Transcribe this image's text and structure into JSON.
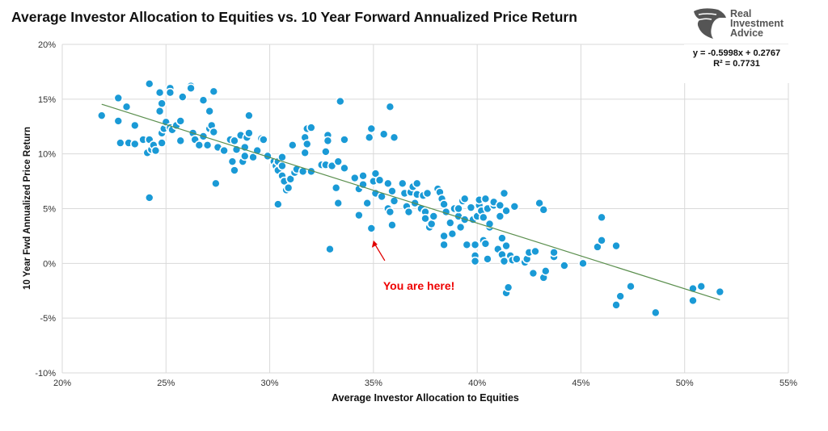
{
  "brand": {
    "logo_line1": "Real",
    "logo_line2": "Investment",
    "logo_line3": "Advice"
  },
  "chart_data": {
    "type": "scatter",
    "title": "Average Investor Allocation to Equities vs. 10 Year Forward Annualized Price Return",
    "xlabel": "Average Investor Allocation to Equities",
    "ylabel": "10 Year Fwd Annualized Price Return",
    "xlim": [
      20,
      55
    ],
    "ylim": [
      -10,
      20
    ],
    "x_ticks": [
      "20%",
      "25%",
      "30%",
      "35%",
      "40%",
      "45%",
      "50%",
      "55%"
    ],
    "y_ticks": [
      "20%",
      "15%",
      "10%",
      "5%",
      "0%",
      "-5%",
      "-10%"
    ],
    "grid": true,
    "point_color": "#1a9ad6",
    "trendline_color": "#5b8f4e",
    "trendline": {
      "slope": -0.5998,
      "intercept": 0.2767,
      "equation": "y = -0.5998x + 0.2767",
      "r2": "R² = 0.7731"
    },
    "annotation": {
      "text": "You are here!",
      "x": 35,
      "y": 3.2,
      "color": "#e00000"
    },
    "points": [
      [
        21.9,
        13.5
      ],
      [
        22.7,
        15.1
      ],
      [
        22.7,
        13.0
      ],
      [
        23.1,
        14.3
      ],
      [
        22.8,
        11.0
      ],
      [
        23.2,
        11.0
      ],
      [
        23.5,
        12.6
      ],
      [
        23.5,
        10.9
      ],
      [
        23.9,
        11.3
      ],
      [
        24.2,
        16.4
      ],
      [
        24.2,
        11.3
      ],
      [
        24.1,
        10.1
      ],
      [
        24.2,
        6.0
      ],
      [
        24.3,
        10.4
      ],
      [
        24.4,
        10.8
      ],
      [
        24.5,
        10.3
      ],
      [
        24.7,
        15.6
      ],
      [
        24.8,
        14.6
      ],
      [
        24.7,
        13.9
      ],
      [
        24.8,
        11.9
      ],
      [
        24.8,
        11.0
      ],
      [
        24.9,
        12.3
      ],
      [
        25.0,
        12.9
      ],
      [
        25.2,
        12.4
      ],
      [
        25.2,
        16.0
      ],
      [
        25.2,
        15.6
      ],
      [
        25.3,
        12.2
      ],
      [
        25.5,
        12.6
      ],
      [
        25.7,
        13.0
      ],
      [
        25.7,
        11.2
      ],
      [
        25.8,
        15.2
      ],
      [
        26.2,
        16.2
      ],
      [
        26.2,
        16.0
      ],
      [
        26.3,
        11.9
      ],
      [
        26.4,
        11.3
      ],
      [
        26.6,
        10.8
      ],
      [
        26.8,
        14.9
      ],
      [
        26.8,
        11.6
      ],
      [
        27.0,
        10.8
      ],
      [
        27.1,
        12.3
      ],
      [
        27.1,
        13.9
      ],
      [
        27.2,
        12.6
      ],
      [
        27.3,
        15.7
      ],
      [
        27.3,
        12.0
      ],
      [
        27.4,
        7.3
      ],
      [
        27.5,
        10.6
      ],
      [
        27.8,
        10.3
      ],
      [
        28.1,
        11.3
      ],
      [
        28.2,
        9.3
      ],
      [
        28.3,
        8.5
      ],
      [
        28.3,
        11.2
      ],
      [
        28.4,
        10.4
      ],
      [
        28.6,
        11.7
      ],
      [
        28.7,
        9.3
      ],
      [
        28.8,
        10.6
      ],
      [
        28.8,
        9.8
      ],
      [
        28.9,
        11.5
      ],
      [
        29.0,
        13.5
      ],
      [
        29.0,
        11.9
      ],
      [
        29.2,
        9.7
      ],
      [
        29.4,
        10.3
      ],
      [
        29.6,
        11.4
      ],
      [
        29.7,
        11.3
      ],
      [
        29.9,
        9.8
      ],
      [
        30.2,
        9.3
      ],
      [
        30.3,
        8.9
      ],
      [
        30.4,
        9.3
      ],
      [
        30.4,
        8.5
      ],
      [
        30.4,
        5.4
      ],
      [
        30.6,
        8.0
      ],
      [
        30.6,
        9.7
      ],
      [
        30.6,
        8.9
      ],
      [
        30.7,
        7.5
      ],
      [
        30.8,
        6.7
      ],
      [
        30.9,
        6.9
      ],
      [
        31.0,
        7.7
      ],
      [
        31.1,
        10.8
      ],
      [
        31.2,
        8.3
      ],
      [
        31.3,
        8.6
      ],
      [
        31.6,
        8.4
      ],
      [
        31.7,
        11.5
      ],
      [
        31.7,
        10.1
      ],
      [
        31.8,
        12.3
      ],
      [
        31.8,
        10.9
      ],
      [
        32.0,
        12.4
      ],
      [
        32.0,
        8.4
      ],
      [
        32.5,
        9.0
      ],
      [
        32.7,
        10.2
      ],
      [
        32.7,
        9.0
      ],
      [
        32.8,
        11.7
      ],
      [
        32.8,
        11.2
      ],
      [
        32.9,
        1.3
      ],
      [
        33.0,
        8.9
      ],
      [
        33.2,
        6.9
      ],
      [
        33.3,
        5.5
      ],
      [
        33.3,
        9.3
      ],
      [
        33.4,
        14.8
      ],
      [
        33.6,
        8.7
      ],
      [
        33.6,
        11.3
      ],
      [
        34.1,
        7.8
      ],
      [
        34.3,
        6.8
      ],
      [
        34.3,
        4.4
      ],
      [
        34.5,
        8.0
      ],
      [
        34.5,
        7.2
      ],
      [
        34.7,
        5.5
      ],
      [
        34.8,
        11.5
      ],
      [
        34.9,
        12.3
      ],
      [
        34.9,
        3.2
      ],
      [
        35.0,
        7.5
      ],
      [
        35.1,
        6.4
      ],
      [
        35.1,
        8.2
      ],
      [
        35.3,
        7.6
      ],
      [
        35.4,
        6.1
      ],
      [
        35.5,
        11.8
      ],
      [
        35.7,
        7.3
      ],
      [
        35.7,
        5.0
      ],
      [
        35.8,
        4.7
      ],
      [
        35.8,
        14.3
      ],
      [
        35.9,
        6.6
      ],
      [
        35.9,
        3.5
      ],
      [
        36.0,
        11.5
      ],
      [
        36.0,
        5.7
      ],
      [
        36.4,
        7.3
      ],
      [
        36.5,
        6.4
      ],
      [
        36.6,
        5.2
      ],
      [
        36.7,
        4.7
      ],
      [
        36.8,
        6.5
      ],
      [
        36.9,
        7.0
      ],
      [
        37.0,
        5.5
      ],
      [
        37.1,
        7.3
      ],
      [
        37.1,
        6.3
      ],
      [
        37.3,
        5.0
      ],
      [
        37.4,
        6.2
      ],
      [
        37.5,
        4.7
      ],
      [
        37.5,
        4.1
      ],
      [
        37.6,
        6.4
      ],
      [
        37.7,
        3.3
      ],
      [
        37.8,
        3.6
      ],
      [
        37.9,
        4.3
      ],
      [
        38.1,
        6.8
      ],
      [
        38.2,
        6.5
      ],
      [
        38.3,
        5.9
      ],
      [
        38.4,
        5.4
      ],
      [
        38.4,
        2.5
      ],
      [
        38.4,
        1.7
      ],
      [
        38.5,
        4.7
      ],
      [
        38.7,
        3.7
      ],
      [
        38.8,
        2.7
      ],
      [
        38.9,
        5.0
      ],
      [
        39.1,
        4.3
      ],
      [
        39.1,
        5.0
      ],
      [
        39.2,
        3.3
      ],
      [
        39.3,
        5.7
      ],
      [
        39.4,
        5.9
      ],
      [
        39.4,
        4.0
      ],
      [
        39.5,
        1.7
      ],
      [
        39.7,
        5.1
      ],
      [
        39.8,
        4.0
      ],
      [
        39.9,
        0.7
      ],
      [
        39.9,
        1.7
      ],
      [
        39.9,
        0.2
      ],
      [
        40.0,
        4.3
      ],
      [
        40.1,
        5.3
      ],
      [
        40.1,
        5.8
      ],
      [
        40.2,
        4.8
      ],
      [
        40.3,
        4.2
      ],
      [
        40.3,
        2.1
      ],
      [
        40.4,
        5.9
      ],
      [
        40.4,
        1.8
      ],
      [
        40.5,
        0.4
      ],
      [
        40.5,
        5.0
      ],
      [
        40.6,
        3.3
      ],
      [
        40.6,
        3.6
      ],
      [
        40.8,
        5.3
      ],
      [
        40.8,
        5.6
      ],
      [
        41.0,
        1.3
      ],
      [
        41.1,
        4.3
      ],
      [
        41.1,
        5.3
      ],
      [
        41.2,
        2.3
      ],
      [
        41.2,
        0.8
      ],
      [
        41.3,
        0.2
      ],
      [
        41.3,
        6.4
      ],
      [
        41.4,
        -2.7
      ],
      [
        41.4,
        4.8
      ],
      [
        41.4,
        1.6
      ],
      [
        41.5,
        -2.2
      ],
      [
        41.6,
        0.7
      ],
      [
        41.7,
        0.3
      ],
      [
        41.8,
        5.2
      ],
      [
        41.9,
        0.4
      ],
      [
        42.3,
        0.1
      ],
      [
        42.4,
        0.4
      ],
      [
        42.5,
        1.0
      ],
      [
        42.7,
        -0.9
      ],
      [
        42.8,
        1.1
      ],
      [
        43.0,
        5.5
      ],
      [
        43.2,
        -1.3
      ],
      [
        43.2,
        4.9
      ],
      [
        43.3,
        -0.7
      ],
      [
        43.7,
        0.6
      ],
      [
        43.7,
        1.0
      ],
      [
        44.2,
        -0.2
      ],
      [
        45.1,
        0.0
      ],
      [
        45.8,
        1.5
      ],
      [
        46.0,
        4.2
      ],
      [
        46.0,
        2.1
      ],
      [
        46.7,
        1.6
      ],
      [
        46.7,
        -3.8
      ],
      [
        46.9,
        -3.0
      ],
      [
        47.4,
        -2.1
      ],
      [
        48.6,
        -4.5
      ],
      [
        50.4,
        -2.3
      ],
      [
        50.4,
        -3.4
      ],
      [
        50.8,
        -2.1
      ],
      [
        51.7,
        -2.6
      ]
    ]
  }
}
